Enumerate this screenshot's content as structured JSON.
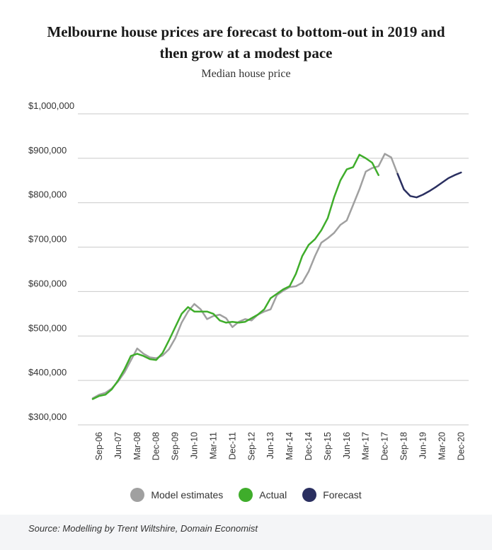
{
  "chart_data": {
    "type": "line",
    "title": "Melbourne house prices are forecast to bottom-out in 2019 and then grow at a modest pace",
    "title_lines": [
      "Melbourne house prices are forecast to bottom-out in 2019 and",
      "then grow at a modest pace"
    ],
    "subtitle": "Median house price",
    "xlabel": "",
    "ylabel": "",
    "ylim": [
      300000,
      1000000
    ],
    "yticks": [
      {
        "value": 300000,
        "label": "$300,000"
      },
      {
        "value": 400000,
        "label": "$400,000"
      },
      {
        "value": 500000,
        "label": "$500,000"
      },
      {
        "value": 600000,
        "label": "$600,000"
      },
      {
        "value": 700000,
        "label": "$700,000"
      },
      {
        "value": 800000,
        "label": "$800,000"
      },
      {
        "value": 900000,
        "label": "$900,000"
      },
      {
        "value": 1000000,
        "label": "$1,000,000"
      }
    ],
    "grid": true,
    "legend_position": "bottom",
    "xlim": [
      "Jun-06",
      "Dec-20"
    ],
    "xticks": [
      "Sep-06",
      "Jun-07",
      "Mar-08",
      "Dec-08",
      "Sep-09",
      "Jun-10",
      "Mar-11",
      "Dec-11",
      "Sep-12",
      "Jun-13",
      "Mar-14",
      "Dec-14",
      "Sep-15",
      "Jun-16",
      "Mar-17",
      "Dec-17",
      "Sep-18",
      "Jun-19",
      "Mar-20",
      "Dec-20"
    ],
    "series": [
      {
        "name": "Model estimates",
        "color": "#a0a0a0",
        "points": [
          [
            "Jun-06",
            360000
          ],
          [
            "Sep-06",
            368000
          ],
          [
            "Dec-06",
            372000
          ],
          [
            "Mar-07",
            382000
          ],
          [
            "Jun-07",
            398000
          ],
          [
            "Sep-07",
            418000
          ],
          [
            "Dec-07",
            445000
          ],
          [
            "Mar-08",
            472000
          ],
          [
            "Jun-08",
            460000
          ],
          [
            "Sep-08",
            452000
          ],
          [
            "Dec-08",
            450000
          ],
          [
            "Mar-09",
            456000
          ],
          [
            "Jun-09",
            470000
          ],
          [
            "Sep-09",
            495000
          ],
          [
            "Dec-09",
            530000
          ],
          [
            "Mar-10",
            555000
          ],
          [
            "Jun-10",
            572000
          ],
          [
            "Sep-10",
            560000
          ],
          [
            "Dec-10",
            538000
          ],
          [
            "Mar-11",
            545000
          ],
          [
            "Jun-11",
            548000
          ],
          [
            "Sep-11",
            540000
          ],
          [
            "Dec-11",
            520000
          ],
          [
            "Mar-12",
            532000
          ],
          [
            "Jun-12",
            538000
          ],
          [
            "Sep-12",
            535000
          ],
          [
            "Dec-12",
            548000
          ],
          [
            "Mar-13",
            555000
          ],
          [
            "Jun-13",
            560000
          ],
          [
            "Sep-13",
            592000
          ],
          [
            "Dec-13",
            602000
          ],
          [
            "Mar-14",
            610000
          ],
          [
            "Jun-14",
            612000
          ],
          [
            "Sep-14",
            620000
          ],
          [
            "Dec-14",
            645000
          ],
          [
            "Mar-15",
            680000
          ],
          [
            "Jun-15",
            710000
          ],
          [
            "Sep-15",
            720000
          ],
          [
            "Dec-15",
            732000
          ],
          [
            "Mar-16",
            750000
          ],
          [
            "Jun-16",
            760000
          ],
          [
            "Sep-16",
            795000
          ],
          [
            "Dec-16",
            830000
          ],
          [
            "Mar-17",
            870000
          ],
          [
            "Jun-17",
            878000
          ],
          [
            "Sep-17",
            882000
          ],
          [
            "Dec-17",
            910000
          ],
          [
            "Mar-18",
            902000
          ],
          [
            "Jun-18",
            865000
          ]
        ]
      },
      {
        "name": "Actual",
        "color": "#3fad2b",
        "points": [
          [
            "Jun-06",
            358000
          ],
          [
            "Sep-06",
            365000
          ],
          [
            "Dec-06",
            368000
          ],
          [
            "Mar-07",
            380000
          ],
          [
            "Jun-07",
            400000
          ],
          [
            "Sep-07",
            425000
          ],
          [
            "Dec-07",
            455000
          ],
          [
            "Mar-08",
            460000
          ],
          [
            "Jun-08",
            455000
          ],
          [
            "Sep-08",
            448000
          ],
          [
            "Dec-08",
            446000
          ],
          [
            "Mar-09",
            462000
          ],
          [
            "Jun-09",
            490000
          ],
          [
            "Sep-09",
            520000
          ],
          [
            "Dec-09",
            550000
          ],
          [
            "Mar-10",
            565000
          ],
          [
            "Jun-10",
            555000
          ],
          [
            "Sep-10",
            555000
          ],
          [
            "Dec-10",
            555000
          ],
          [
            "Mar-11",
            550000
          ],
          [
            "Jun-11",
            535000
          ],
          [
            "Sep-11",
            530000
          ],
          [
            "Dec-11",
            532000
          ],
          [
            "Mar-12",
            530000
          ],
          [
            "Jun-12",
            532000
          ],
          [
            "Sep-12",
            540000
          ],
          [
            "Dec-12",
            548000
          ],
          [
            "Mar-13",
            560000
          ],
          [
            "Jun-13",
            585000
          ],
          [
            "Sep-13",
            595000
          ],
          [
            "Dec-13",
            605000
          ],
          [
            "Mar-14",
            612000
          ],
          [
            "Jun-14",
            640000
          ],
          [
            "Sep-14",
            680000
          ],
          [
            "Dec-14",
            705000
          ],
          [
            "Mar-15",
            718000
          ],
          [
            "Jun-15",
            738000
          ],
          [
            "Sep-15",
            765000
          ],
          [
            "Dec-15",
            812000
          ],
          [
            "Mar-16",
            850000
          ],
          [
            "Jun-16",
            875000
          ],
          [
            "Sep-16",
            880000
          ],
          [
            "Dec-16",
            908000
          ],
          [
            "Mar-17",
            900000
          ],
          [
            "Jun-17",
            890000
          ],
          [
            "Sep-17",
            862000
          ]
        ]
      },
      {
        "name": "Forecast",
        "color": "#2a2f60",
        "points": [
          [
            "Jun-18",
            865000
          ],
          [
            "Sep-18",
            830000
          ],
          [
            "Dec-18",
            815000
          ],
          [
            "Mar-19",
            812000
          ],
          [
            "Jun-19",
            818000
          ],
          [
            "Sep-19",
            826000
          ],
          [
            "Dec-19",
            835000
          ],
          [
            "Mar-20",
            845000
          ],
          [
            "Jun-20",
            855000
          ],
          [
            "Sep-20",
            862000
          ],
          [
            "Dec-20",
            868000
          ]
        ]
      }
    ]
  },
  "source": "Source: Modelling by Trent Wiltshire, Domain Economist"
}
